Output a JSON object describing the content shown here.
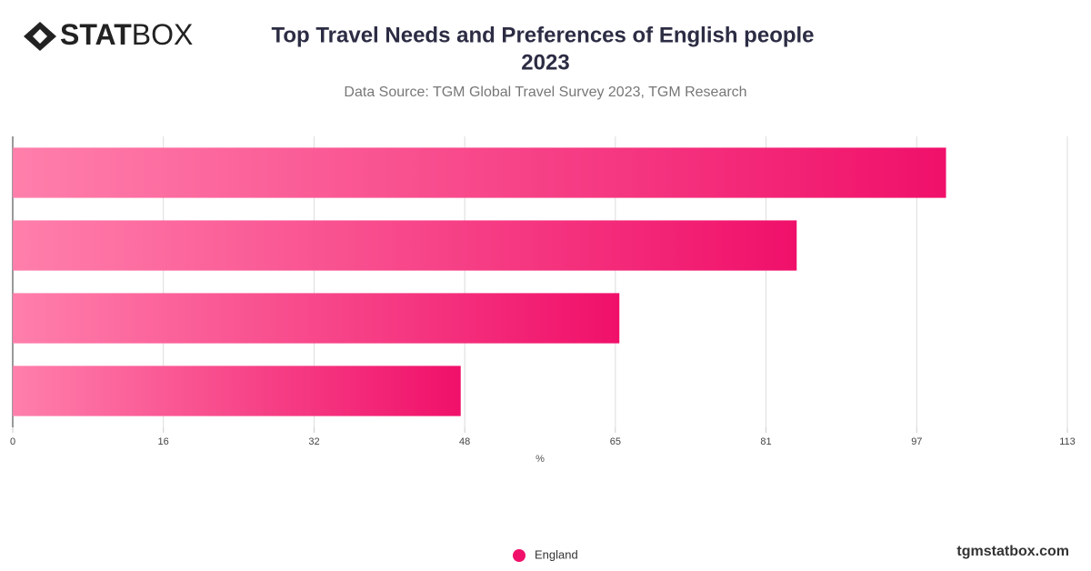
{
  "logo": [
    "STAT",
    "BOX"
  ],
  "website": "tgmstatbox.com",
  "chart_data": {
    "type": "bar",
    "orientation": "horizontal",
    "title": [
      "Top Travel Needs and Preferences of English people",
      "2023"
    ],
    "subtitle": "Data Source: TGM Global Travel Survey 2023, TGM Research",
    "x_label": "%",
    "categories": [
      null,
      null,
      null,
      null
    ],
    "series": [
      {
        "name": "England",
        "color": "#f0106a",
        "values": [
          100,
          84,
          65,
          48
        ]
      }
    ],
    "xlim": [
      0,
      113
    ],
    "xticks": [
      0,
      {
        "value": 16.14,
        "label": "16"
      },
      {
        "value": 32.29,
        "label": "32"
      },
      {
        "value": 48.43,
        "label": "48"
      },
      {
        "value": 64.57,
        "label": "65"
      },
      {
        "value": 80.71,
        "label": "81"
      },
      {
        "value": 96.86,
        "label": "97"
      },
      113
    ],
    "grid": true
  }
}
